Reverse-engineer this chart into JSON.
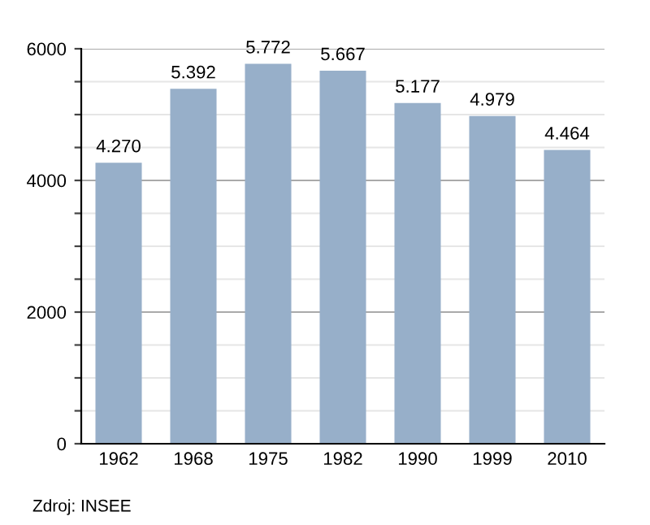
{
  "chart_data": {
    "type": "bar",
    "categories": [
      "1962",
      "1968",
      "1975",
      "1982",
      "1990",
      "1999",
      "2010"
    ],
    "values": [
      4270,
      5392,
      5772,
      5667,
      5177,
      4979,
      4464
    ],
    "value_labels": [
      "4.270",
      "5.392",
      "5.772",
      "5.667",
      "5.177",
      "4.979",
      "4.464"
    ],
    "color": "#97afc9",
    "ylim": [
      0,
      6000
    ],
    "yticks": [
      0,
      {
        "value": 500,
        "label": null
      },
      {
        "value": 1000,
        "label": null
      },
      {
        "value": 1500,
        "label": null
      },
      2000,
      {
        "value": 2500,
        "label": null
      },
      {
        "value": 3000,
        "label": null
      },
      {
        "value": 3500,
        "label": null
      },
      4000,
      {
        "value": 4500,
        "label": null
      },
      {
        "value": 5000,
        "label": null
      },
      {
        "value": 5500,
        "label": null
      },
      6000
    ],
    "grid": "y",
    "annotations": [
      "Zdroj: INSEE"
    ]
  }
}
